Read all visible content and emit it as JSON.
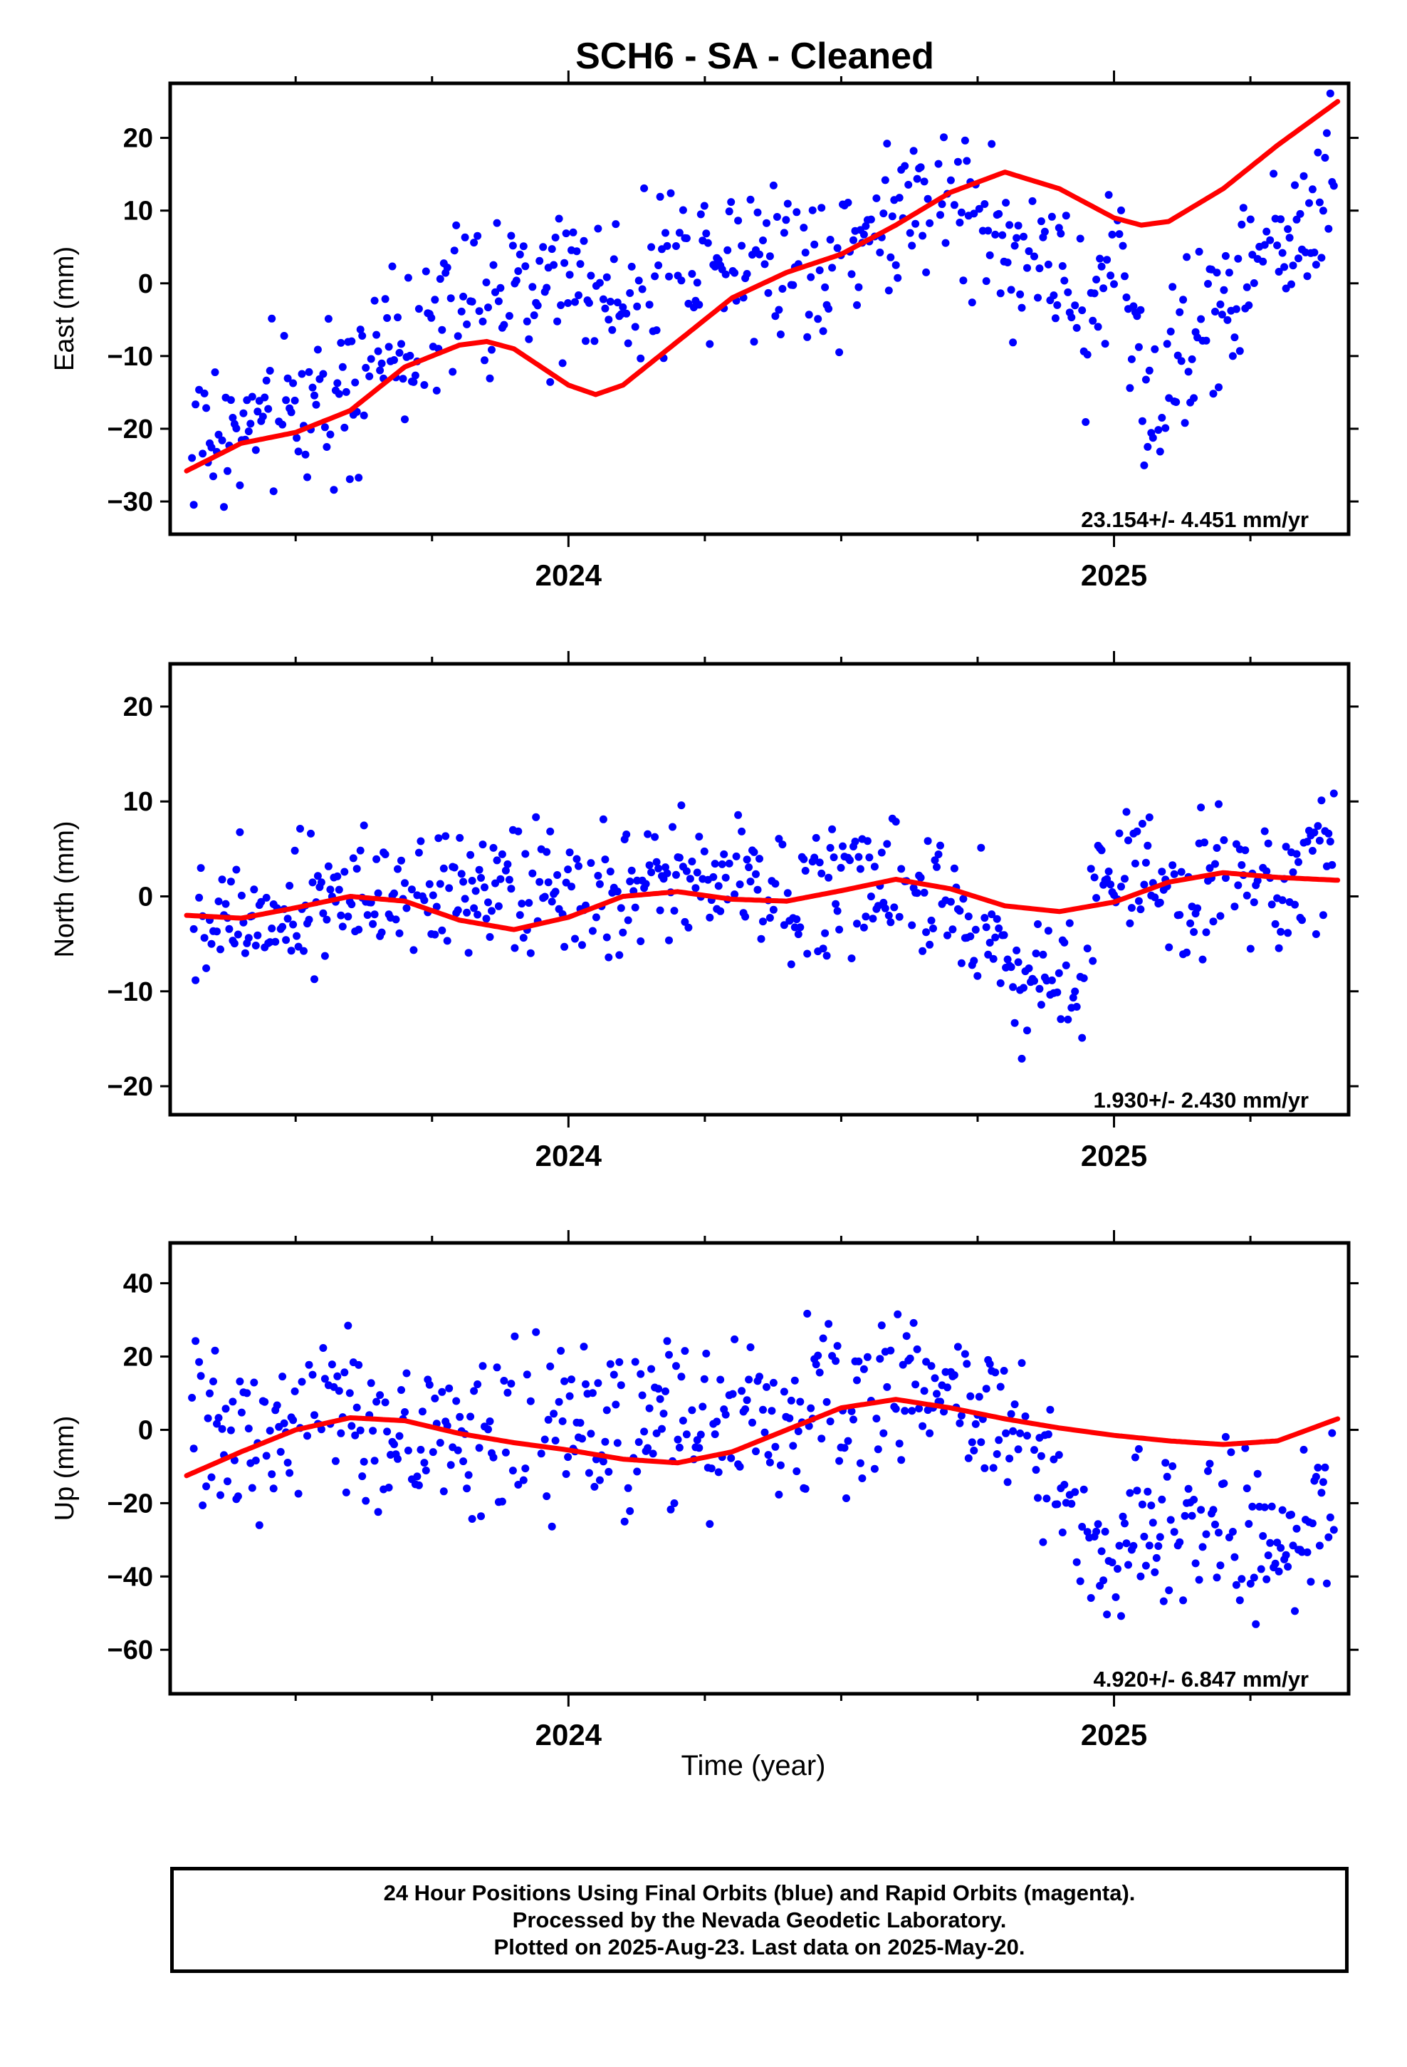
{
  "title": "SCH6  - SA - Cleaned",
  "xlabel": "Time (year)",
  "footer": {
    "line1": "24 Hour Positions Using Final Orbits (blue) and Rapid Orbits (magenta).",
    "line2": "Processed by the Nevada Geodetic Laboratory.",
    "line3": "Plotted on 2025-Aug-23. Last data on 2025-May-20."
  },
  "colors": {
    "final_orbits": "#0000ff",
    "rapid_orbits": "#ff00ff",
    "fit": "#ff0000",
    "frame": "#000000"
  },
  "chart_data": [
    {
      "type": "scatter",
      "ylabel": "East (mm)",
      "xlim": [
        2023.27,
        2025.43
      ],
      "ylim": [
        -34.5,
        27.5
      ],
      "yticks": [
        -30,
        -20,
        -10,
        0,
        10,
        20
      ],
      "xticks": [
        "2024",
        "2025"
      ],
      "rate_text": "23.154+/- 4.451 mm/yr",
      "fit": [
        [
          2023.3,
          -25.8
        ],
        [
          2023.4,
          -22
        ],
        [
          2023.5,
          -20.5
        ],
        [
          2023.6,
          -17.5
        ],
        [
          2023.7,
          -11.5
        ],
        [
          2023.8,
          -8.5
        ],
        [
          2023.85,
          -8
        ],
        [
          2023.9,
          -9
        ],
        [
          2024.0,
          -14
        ],
        [
          2024.05,
          -15.3
        ],
        [
          2024.1,
          -14
        ],
        [
          2024.2,
          -8
        ],
        [
          2024.3,
          -2
        ],
        [
          2024.4,
          1.5
        ],
        [
          2024.5,
          4
        ],
        [
          2024.6,
          8
        ],
        [
          2024.7,
          12.5
        ],
        [
          2024.8,
          15.3
        ],
        [
          2024.9,
          13
        ],
        [
          2025.0,
          9
        ],
        [
          2025.05,
          8
        ],
        [
          2025.1,
          8.5
        ],
        [
          2025.2,
          13
        ],
        [
          2025.3,
          19
        ],
        [
          2025.41,
          25
        ]
      ],
      "trend": [
        [
          2023.3,
          -22
        ],
        [
          2023.4,
          -20.5
        ],
        [
          2023.5,
          -18
        ],
        [
          2023.6,
          -12
        ],
        [
          2023.7,
          -8
        ],
        [
          2023.8,
          -3
        ],
        [
          2023.9,
          -1
        ],
        [
          2024.0,
          0
        ],
        [
          2024.1,
          -1
        ],
        [
          2024.2,
          3
        ],
        [
          2024.3,
          6
        ],
        [
          2024.4,
          4
        ],
        [
          2024.5,
          3
        ],
        [
          2024.6,
          10
        ],
        [
          2024.7,
          12
        ],
        [
          2024.8,
          6
        ],
        [
          2024.9,
          2
        ],
        [
          2024.95,
          -10
        ],
        [
          2025.0,
          7
        ],
        [
          2025.07,
          -18
        ],
        [
          2025.12,
          -8
        ],
        [
          2025.2,
          -3
        ],
        [
          2025.25,
          2
        ],
        [
          2025.35,
          8
        ],
        [
          2025.41,
          18
        ]
      ],
      "amp": 5.5
    },
    {
      "type": "scatter",
      "ylabel": "North (mm)",
      "xlim": [
        2023.27,
        2025.43
      ],
      "ylim": [
        -23,
        24.5
      ],
      "yticks": [
        -20,
        -10,
        0,
        10,
        20
      ],
      "xticks": [
        "2024",
        "2025"
      ],
      "rate_text": "1.930+/- 2.430 mm/yr",
      "fit": [
        [
          2023.3,
          -2
        ],
        [
          2023.4,
          -2.3
        ],
        [
          2023.5,
          -1.2
        ],
        [
          2023.6,
          0
        ],
        [
          2023.7,
          -0.5
        ],
        [
          2023.8,
          -2.5
        ],
        [
          2023.9,
          -3.5
        ],
        [
          2024.0,
          -2.2
        ],
        [
          2024.1,
          0
        ],
        [
          2024.2,
          0.5
        ],
        [
          2024.3,
          -0.3
        ],
        [
          2024.4,
          -0.5
        ],
        [
          2024.5,
          0.6
        ],
        [
          2024.6,
          1.8
        ],
        [
          2024.7,
          0.8
        ],
        [
          2024.8,
          -1
        ],
        [
          2024.9,
          -1.6
        ],
        [
          2025.0,
          -0.6
        ],
        [
          2025.1,
          1.5
        ],
        [
          2025.2,
          2.5
        ],
        [
          2025.3,
          2
        ],
        [
          2025.41,
          1.7
        ]
      ],
      "trend": [
        [
          2023.3,
          -4
        ],
        [
          2023.4,
          -1
        ],
        [
          2023.5,
          0
        ],
        [
          2023.6,
          1
        ],
        [
          2023.7,
          1
        ],
        [
          2023.8,
          2
        ],
        [
          2023.9,
          0
        ],
        [
          2024.0,
          -1
        ],
        [
          2024.1,
          0
        ],
        [
          2024.2,
          2
        ],
        [
          2024.3,
          2
        ],
        [
          2024.4,
          0
        ],
        [
          2024.5,
          1
        ],
        [
          2024.6,
          2
        ],
        [
          2024.7,
          1
        ],
        [
          2024.8,
          -7
        ],
        [
          2024.9,
          -9
        ],
        [
          2024.95,
          -7
        ],
        [
          2025.0,
          5
        ],
        [
          2025.05,
          3
        ],
        [
          2025.1,
          0
        ],
        [
          2025.2,
          2
        ],
        [
          2025.3,
          1
        ],
        [
          2025.41,
          5
        ]
      ],
      "amp": 3.4
    },
    {
      "type": "scatter",
      "ylabel": "Up (mm)",
      "xlim": [
        2023.27,
        2025.43
      ],
      "ylim": [
        -72,
        51
      ],
      "yticks": [
        -60,
        -40,
        -20,
        0,
        20,
        40
      ],
      "xticks": [
        "2024",
        "2025"
      ],
      "rate_text": "4.920+/- 6.847 mm/yr",
      "fit": [
        [
          2023.3,
          -12.5
        ],
        [
          2023.4,
          -6
        ],
        [
          2023.5,
          0
        ],
        [
          2023.6,
          3.3
        ],
        [
          2023.7,
          2.5
        ],
        [
          2023.8,
          -1
        ],
        [
          2023.9,
          -3.5
        ],
        [
          2024.0,
          -5.5
        ],
        [
          2024.1,
          -8
        ],
        [
          2024.2,
          -9
        ],
        [
          2024.3,
          -6
        ],
        [
          2024.4,
          0
        ],
        [
          2024.5,
          6
        ],
        [
          2024.6,
          8.3
        ],
        [
          2024.7,
          6
        ],
        [
          2024.8,
          3
        ],
        [
          2024.9,
          0.5
        ],
        [
          2025.0,
          -1.5
        ],
        [
          2025.1,
          -3
        ],
        [
          2025.2,
          -4
        ],
        [
          2025.3,
          -3
        ],
        [
          2025.41,
          3
        ]
      ],
      "trend": [
        [
          2023.3,
          2
        ],
        [
          2023.4,
          0
        ],
        [
          2023.5,
          5
        ],
        [
          2023.6,
          3
        ],
        [
          2023.7,
          0
        ],
        [
          2023.8,
          -2
        ],
        [
          2023.9,
          0
        ],
        [
          2024.0,
          2
        ],
        [
          2024.1,
          -2
        ],
        [
          2024.2,
          0
        ],
        [
          2024.3,
          3
        ],
        [
          2024.4,
          2
        ],
        [
          2024.5,
          8
        ],
        [
          2024.6,
          12
        ],
        [
          2024.7,
          10
        ],
        [
          2024.8,
          8
        ],
        [
          2024.9,
          -20
        ],
        [
          2024.95,
          -38
        ],
        [
          2025.0,
          -30
        ],
        [
          2025.1,
          -25
        ],
        [
          2025.2,
          -20
        ],
        [
          2025.3,
          -38
        ],
        [
          2025.41,
          -18
        ]
      ],
      "amp": 11
    }
  ]
}
